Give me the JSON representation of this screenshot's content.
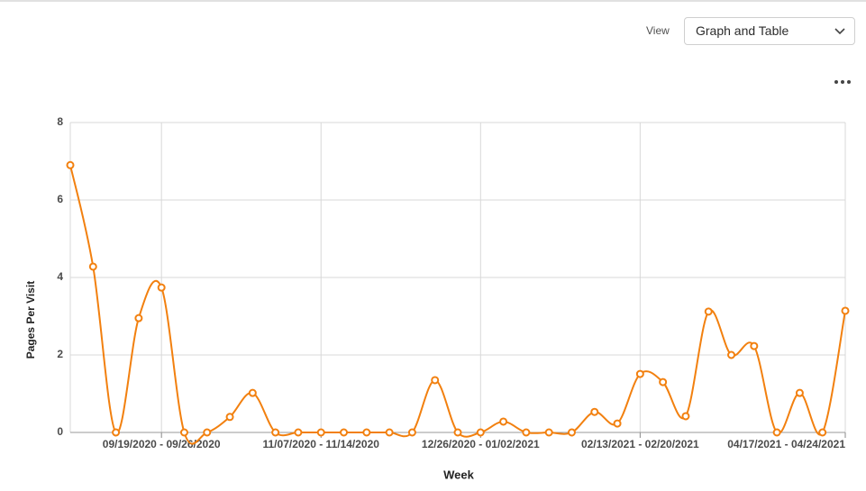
{
  "controls": {
    "view_label": "View",
    "view_select": "Graph and Table"
  },
  "chart_data": {
    "type": "line",
    "y_label": "Pages Per Visit",
    "x_label": "Week",
    "categories": [
      null,
      null,
      null,
      null,
      "09/19/2020 - 09/26/2020",
      null,
      null,
      null,
      null,
      null,
      null,
      "11/07/2020 - 11/14/2020",
      null,
      null,
      null,
      null,
      null,
      null,
      "12/26/2020 - 01/02/2021",
      null,
      null,
      null,
      null,
      null,
      null,
      "02/13/2021 - 02/20/2021",
      null,
      null,
      null,
      null,
      null,
      null,
      null,
      null,
      "04/17/2021 - 04/24/2021"
    ],
    "values": [
      6.9,
      4.28,
      0,
      2.95,
      3.74,
      0,
      0,
      0.4,
      1.02,
      0,
      0,
      0,
      0,
      0,
      0,
      0,
      1.35,
      0,
      0,
      0.28,
      0,
      0,
      0,
      0.53,
      0.23,
      1.51,
      1.3,
      0.42,
      3.12,
      2.0,
      2.23,
      0,
      1.02,
      0,
      3.14
    ],
    "color": "#f2800f",
    "ylim": [
      0,
      8
    ],
    "yticks": [
      0,
      2,
      4,
      6,
      8
    ],
    "grid": true
  }
}
